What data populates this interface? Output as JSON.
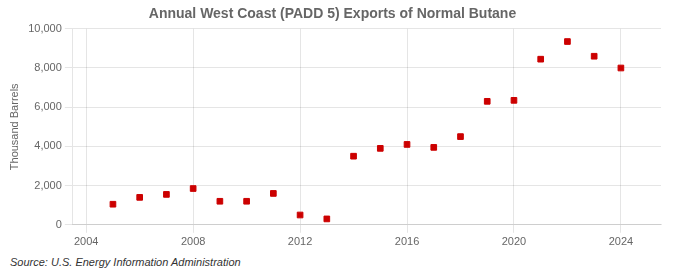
{
  "chart_data": {
    "type": "scatter",
    "title": "Annual West Coast (PADD 5) Exports of Normal Butane",
    "ylabel": "Thousand Barrels",
    "annotations": [
      "Source: U.S. Energy Information Administration"
    ],
    "x": [
      2005,
      2006,
      2007,
      2008,
      2009,
      2010,
      2011,
      2012,
      2013,
      2014,
      2015,
      2016,
      2017,
      2018,
      2019,
      2020,
      2021,
      2022,
      2023,
      2024
    ],
    "values": [
      1050,
      1400,
      1550,
      1850,
      1200,
      1200,
      1600,
      500,
      300,
      3500,
      3900,
      4100,
      3950,
      4500,
      6300,
      6350,
      8450,
      9350,
      8600,
      8000
    ],
    "color": "#cc0000",
    "marker": "square",
    "xlim": [
      2003.5,
      2025.5
    ],
    "xticks": [
      2004,
      2008,
      2012,
      2016,
      2020,
      2024
    ],
    "ylim": [
      0,
      10000
    ],
    "yticks": [
      0,
      {
        "value": 2000,
        "label": "2,000"
      },
      {
        "value": 4000,
        "label": "4,000"
      },
      {
        "value": 6000,
        "label": "6,000"
      },
      {
        "value": 8000,
        "label": "8,000"
      },
      {
        "value": 10000,
        "label": "10,000"
      }
    ],
    "grid": true
  }
}
